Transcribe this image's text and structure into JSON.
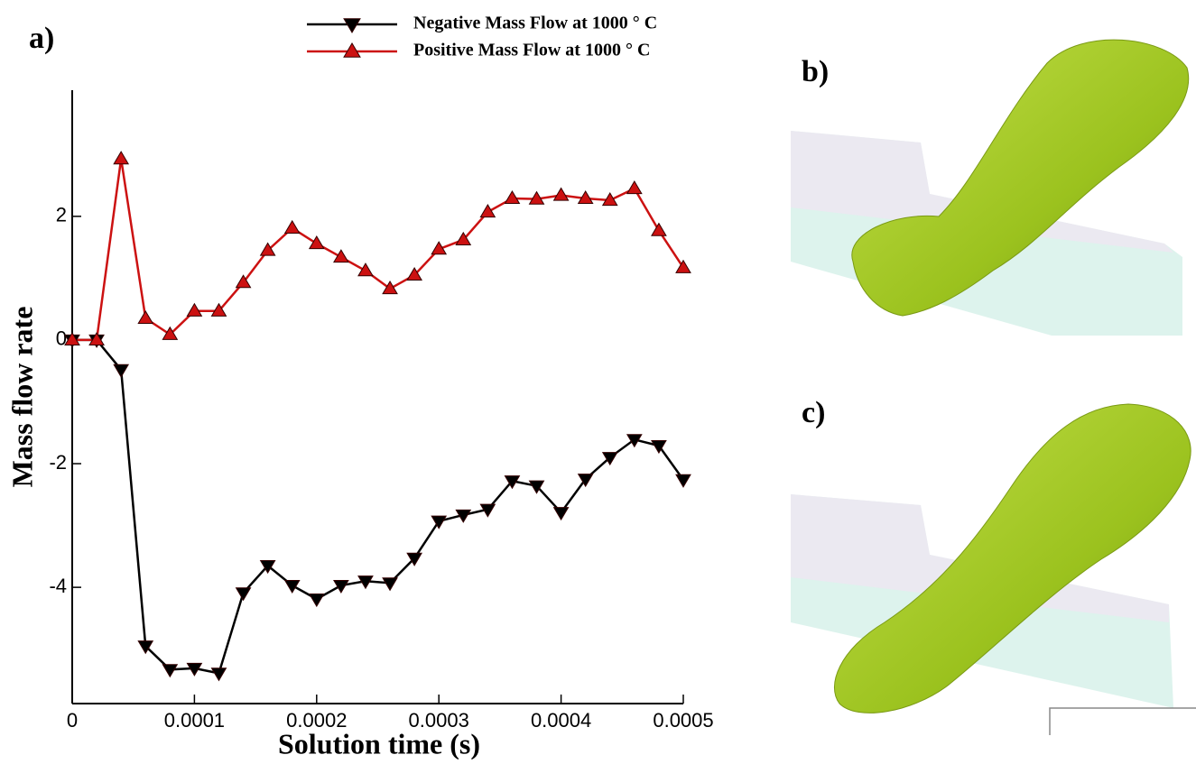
{
  "chart_data": {
    "type": "line",
    "panel_label": "a)",
    "x_label": "Solution time (s)",
    "y_label": "Mass flow rate",
    "x": [
      0,
      2e-05,
      4e-05,
      6e-05,
      8e-05,
      0.0001,
      0.00012,
      0.00014,
      0.00016,
      0.00018,
      0.0002,
      0.00022,
      0.00024,
      0.00026,
      0.00028,
      0.0003,
      0.00032,
      0.00034,
      0.00036,
      0.00038,
      0.0004,
      0.00042,
      0.00044,
      0.00046,
      0.00048,
      0.0005
    ],
    "series": [
      {
        "name": "Negative Mass Flow at 1000 ° C",
        "color": "#000000",
        "marker": "triangle-down",
        "values": [
          0,
          0,
          -0.48,
          -4.95,
          -5.33,
          -5.31,
          -5.39,
          -4.09,
          -3.65,
          -3.97,
          -4.19,
          -3.97,
          -3.9,
          -3.93,
          -3.53,
          -2.93,
          -2.83,
          -2.74,
          -2.28,
          -2.36,
          -2.79,
          -2.25,
          -1.9,
          -1.61,
          -1.71,
          -2.26
        ]
      },
      {
        "name": "Positive Mass Flow at 1000 ° C",
        "color": "#cc1111",
        "marker": "triangle-up",
        "values": [
          0,
          0,
          2.93,
          0.35,
          0.09,
          0.47,
          0.47,
          0.93,
          1.45,
          1.81,
          1.56,
          1.34,
          1.12,
          0.83,
          1.05,
          1.47,
          1.62,
          2.07,
          2.29,
          2.28,
          2.34,
          2.29,
          2.26,
          2.45,
          1.77,
          1.17
        ]
      }
    ],
    "xlim": [
      0,
      0.0005
    ],
    "xticks": [
      0,
      0.0001,
      0.0002,
      0.0003,
      0.0004,
      0.0005
    ],
    "ylim": [
      -5.88,
      4.04
    ],
    "yticks": [
      -4,
      -2,
      0,
      2
    ],
    "legend": "top"
  },
  "panels": [
    {
      "label": "b)"
    },
    {
      "label": "c)"
    }
  ]
}
